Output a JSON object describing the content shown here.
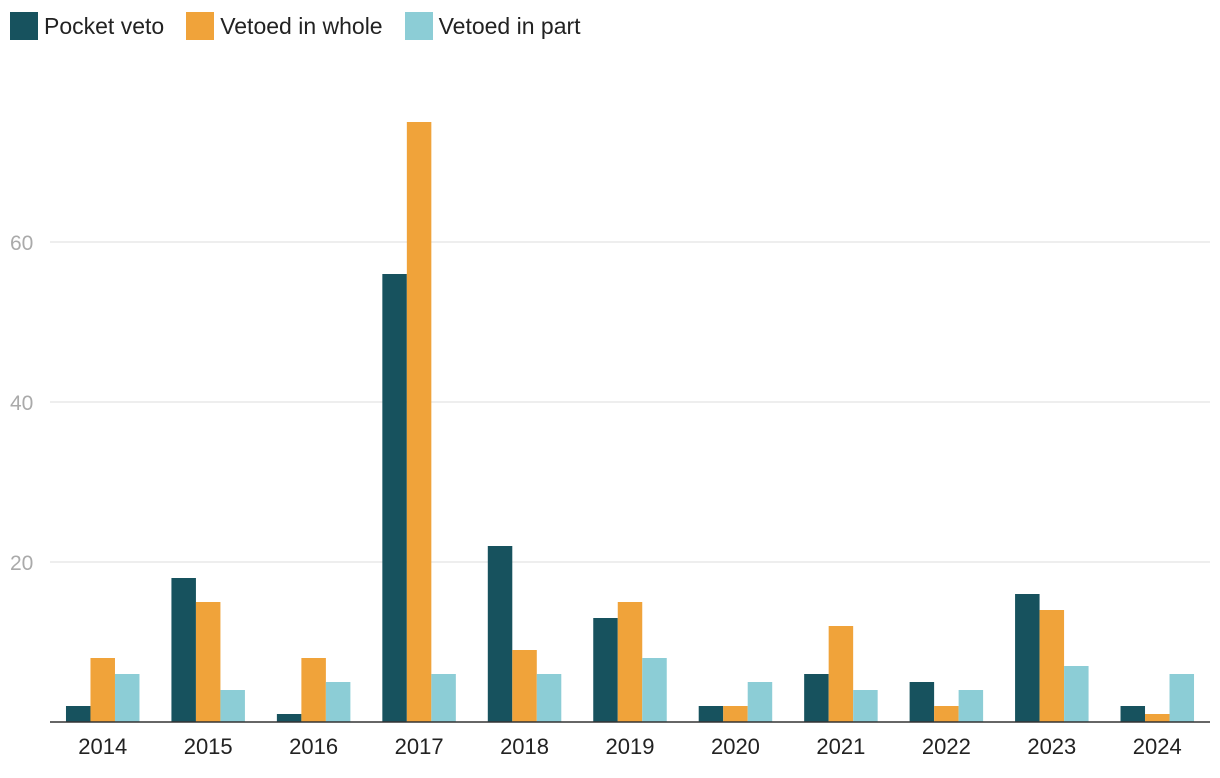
{
  "chart_data": {
    "type": "bar",
    "categories": [
      "2014",
      "2015",
      "2016",
      "2017",
      "2018",
      "2019",
      "2020",
      "2021",
      "2022",
      "2023",
      "2024"
    ],
    "series": [
      {
        "name": "Pocket veto",
        "color": "#17525e",
        "values": [
          2,
          18,
          1,
          56,
          22,
          13,
          2,
          6,
          5,
          16,
          2
        ]
      },
      {
        "name": "Vetoed in whole",
        "color": "#f0a33a",
        "values": [
          8,
          15,
          8,
          75,
          9,
          15,
          2,
          12,
          2,
          14,
          1
        ]
      },
      {
        "name": "Vetoed in part",
        "color": "#8ccdd6",
        "values": [
          6,
          4,
          5,
          6,
          6,
          8,
          5,
          4,
          4,
          7,
          6
        ]
      }
    ],
    "yticks": [
      20,
      40,
      60
    ],
    "ylim": [
      0,
      80
    ],
    "grid": true,
    "legend_position": "top-left"
  }
}
